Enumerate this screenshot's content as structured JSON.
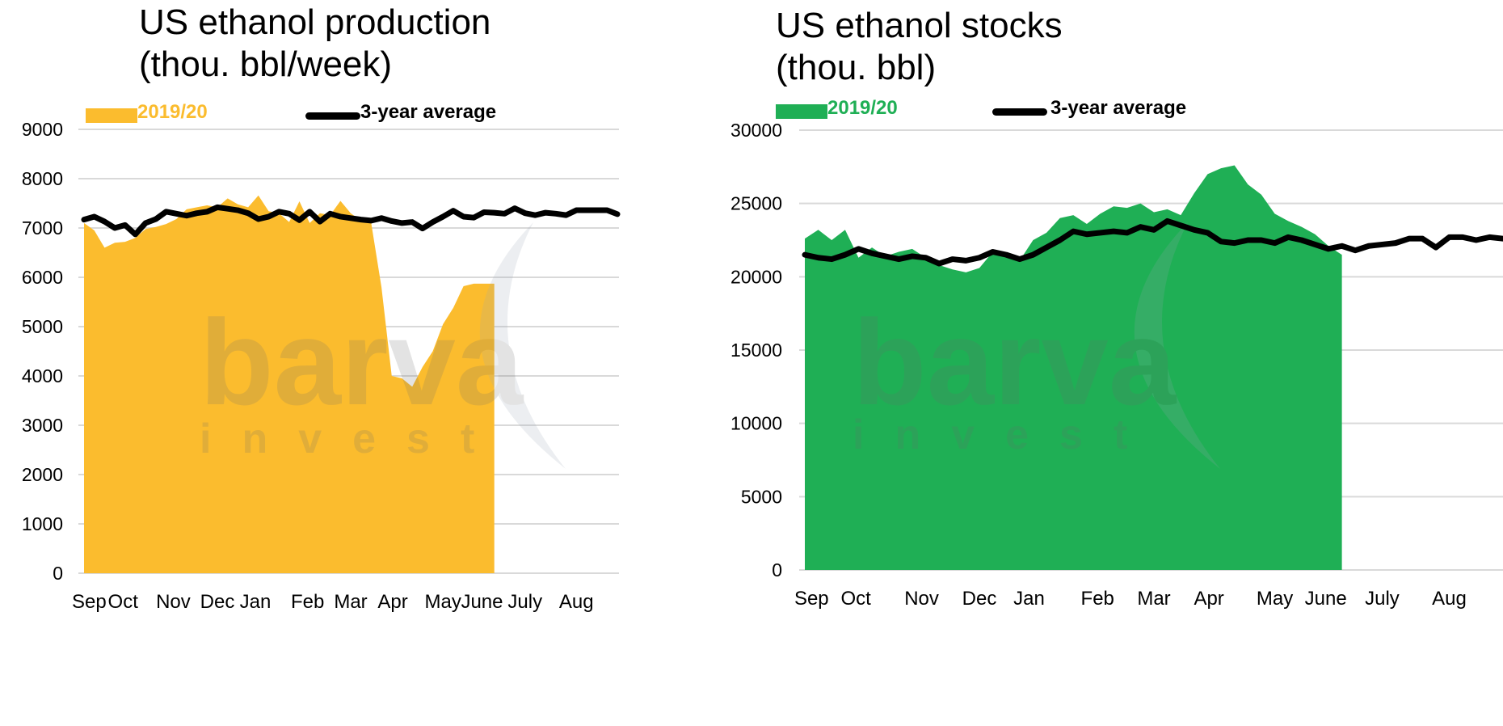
{
  "colors": {
    "production_fill": "#FBBC2E",
    "stocks_fill": "#1FAF55",
    "average_line": "#000000",
    "gridline": "#D9D9D9",
    "watermark": "#9aa7b4"
  },
  "watermark": {
    "brand": "barva",
    "sub": "invest"
  },
  "chart_data": [
    {
      "type": "area",
      "title_line1": "US ethanol production",
      "title_line2": "(thou. bbl/week)",
      "legend": {
        "series_label": "2019/20",
        "average_label": "3-year average",
        "placement": "top"
      },
      "ylim": [
        0,
        9000
      ],
      "yticks": [
        0,
        1000,
        2000,
        3000,
        4000,
        5000,
        6000,
        7000,
        8000,
        9000
      ],
      "xlim": [
        0,
        52
      ],
      "grid": true,
      "xtick_labels": [
        {
          "label": "Sep",
          "x": 0.5
        },
        {
          "label": "Oct",
          "x": 3.8
        },
        {
          "label": "Nov",
          "x": 8.7
        },
        {
          "label": "Dec",
          "x": 13.0
        },
        {
          "label": "Jan",
          "x": 16.7
        },
        {
          "label": "Feb",
          "x": 21.8
        },
        {
          "label": "Mar",
          "x": 26.0
        },
        {
          "label": "Apr",
          "x": 30.1
        },
        {
          "label": "May",
          "x": 35.0
        },
        {
          "label": "June",
          "x": 38.8
        },
        {
          "label": "July",
          "x": 43.0
        },
        {
          "label": "Aug",
          "x": 48.0
        }
      ],
      "series": [
        {
          "name": "2019/20",
          "x": [
            0,
            1,
            2,
            3,
            4,
            5,
            6,
            7,
            8,
            9,
            10,
            11,
            12,
            13,
            14,
            15,
            16,
            17,
            18,
            19,
            20,
            21,
            22,
            23,
            24,
            25,
            26,
            27,
            28,
            29,
            30,
            31,
            32,
            33,
            34,
            35,
            36,
            37,
            38,
            39,
            40
          ],
          "values": [
            7100,
            6950,
            6600,
            6700,
            6720,
            6800,
            6980,
            7020,
            7080,
            7180,
            7380,
            7420,
            7460,
            7420,
            7600,
            7480,
            7420,
            7660,
            7340,
            7300,
            7120,
            7540,
            7100,
            7300,
            7260,
            7550,
            7300,
            7150,
            7100,
            5800,
            4000,
            3950,
            3780,
            4180,
            4500,
            5050,
            5380,
            5820,
            5870,
            5870,
            5870
          ]
        },
        {
          "name": "3-year average",
          "x": [
            0,
            1,
            2,
            3,
            4,
            5,
            6,
            7,
            8,
            9,
            10,
            11,
            12,
            13,
            14,
            15,
            16,
            17,
            18,
            19,
            20,
            21,
            22,
            23,
            24,
            25,
            26,
            27,
            28,
            29,
            30,
            31,
            32,
            33,
            34,
            35,
            36,
            37,
            38,
            39,
            40,
            41,
            42,
            43,
            44,
            45,
            46,
            47,
            48,
            49,
            50,
            51,
            52
          ],
          "values": [
            7170,
            7230,
            7130,
            7000,
            7060,
            6870,
            7100,
            7180,
            7330,
            7290,
            7250,
            7300,
            7330,
            7420,
            7390,
            7360,
            7300,
            7180,
            7230,
            7330,
            7290,
            7160,
            7330,
            7130,
            7290,
            7230,
            7200,
            7170,
            7150,
            7200,
            7140,
            7100,
            7120,
            6990,
            7120,
            7230,
            7350,
            7230,
            7210,
            7320,
            7310,
            7290,
            7400,
            7300,
            7260,
            7310,
            7290,
            7260,
            7360,
            7360,
            7360,
            7360,
            7280
          ]
        }
      ]
    },
    {
      "type": "area",
      "title_line1": "US ethanol stocks",
      "title_line2": "(thou. bbl)",
      "legend": {
        "series_label": "2019/20",
        "average_label": "3-year average",
        "placement": "top"
      },
      "ylim": [
        0,
        30000
      ],
      "yticks": [
        0,
        5000,
        10000,
        15000,
        20000,
        25000,
        30000
      ],
      "xlim": [
        0,
        52
      ],
      "grid": true,
      "xtick_labels": [
        {
          "label": "Sep",
          "x": 0.5
        },
        {
          "label": "Oct",
          "x": 3.8
        },
        {
          "label": "Nov",
          "x": 8.7
        },
        {
          "label": "Dec",
          "x": 13.0
        },
        {
          "label": "Jan",
          "x": 16.7
        },
        {
          "label": "Feb",
          "x": 21.8
        },
        {
          "label": "Mar",
          "x": 26.0
        },
        {
          "label": "Apr",
          "x": 30.1
        },
        {
          "label": "May",
          "x": 35.0
        },
        {
          "label": "June",
          "x": 38.8
        },
        {
          "label": "July",
          "x": 43.0
        },
        {
          "label": "Aug",
          "x": 48.0
        }
      ],
      "series": [
        {
          "name": "2019/20",
          "x": [
            0,
            1,
            2,
            3,
            4,
            5,
            6,
            7,
            8,
            9,
            10,
            11,
            12,
            13,
            14,
            15,
            16,
            17,
            18,
            19,
            20,
            21,
            22,
            23,
            24,
            25,
            26,
            27,
            28,
            29,
            30,
            31,
            32,
            33,
            34,
            35,
            36,
            37,
            38,
            39,
            40
          ],
          "values": [
            22600,
            23200,
            22500,
            23200,
            21300,
            22000,
            21400,
            21700,
            21900,
            21300,
            20800,
            20500,
            20300,
            20600,
            21700,
            21500,
            21100,
            22500,
            23000,
            24000,
            24200,
            23600,
            24300,
            24800,
            24700,
            25000,
            24400,
            24600,
            24200,
            25700,
            27000,
            27400,
            27600,
            26300,
            25600,
            24300,
            23800,
            23400,
            22900,
            22100,
            21500
          ]
        },
        {
          "name": "3-year average",
          "x": [
            0,
            1,
            2,
            3,
            4,
            5,
            6,
            7,
            8,
            9,
            10,
            11,
            12,
            13,
            14,
            15,
            16,
            17,
            18,
            19,
            20,
            21,
            22,
            23,
            24,
            25,
            26,
            27,
            28,
            29,
            30,
            31,
            32,
            33,
            34,
            35,
            36,
            37,
            38,
            39,
            40,
            41,
            42,
            43,
            44,
            45,
            46,
            47,
            48,
            49,
            50,
            51,
            52
          ],
          "values": [
            21500,
            21300,
            21200,
            21500,
            21900,
            21600,
            21400,
            21200,
            21400,
            21300,
            20900,
            21200,
            21100,
            21300,
            21700,
            21500,
            21200,
            21500,
            22000,
            22500,
            23100,
            22900,
            23000,
            23100,
            23000,
            23400,
            23200,
            23800,
            23500,
            23200,
            23000,
            22400,
            22300,
            22500,
            22500,
            22300,
            22700,
            22500,
            22200,
            21900,
            22100,
            21800,
            22100,
            22200,
            22300,
            22600,
            22600,
            22000,
            22700,
            22700,
            22500,
            22700,
            22600
          ]
        }
      ]
    }
  ]
}
